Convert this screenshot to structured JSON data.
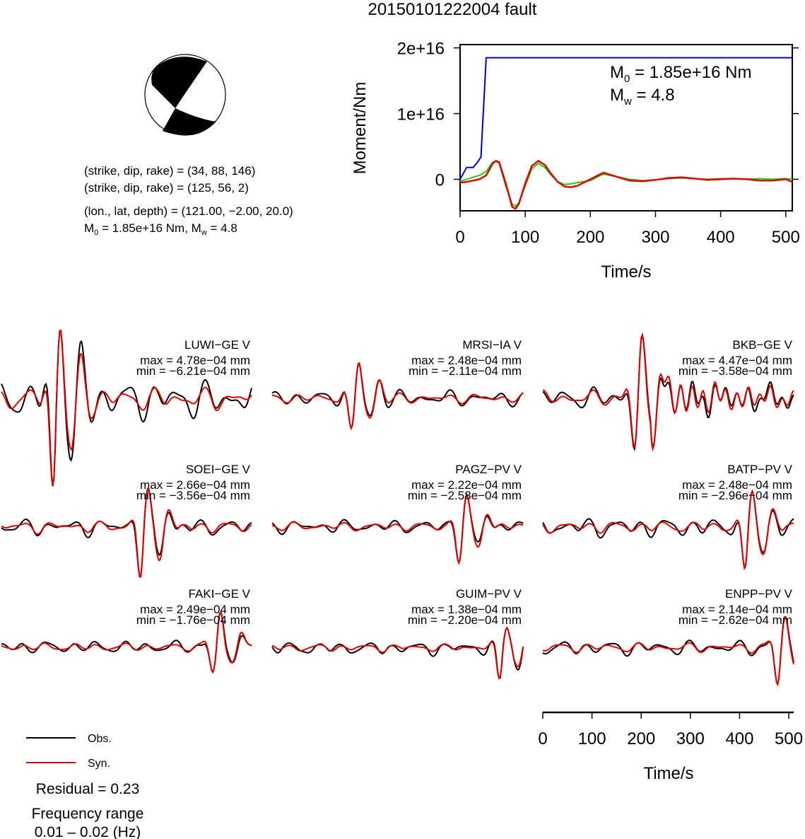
{
  "title": "20150101222004 fault",
  "mechanism": {
    "plane1": "(strike, dip, rake) = (34, 88, 146)",
    "plane2": "(strike, dip, rake) = (125, 56, 2)",
    "location": "(lon., lat, depth) = (121.00, −2.00, 20.0)",
    "moment_prefix": "M",
    "moment_sub": "0",
    "moment_rest": " = 1.85e+16 Nm, M",
    "mw_sub": "w",
    "mw_rest": " = 4.8"
  },
  "legend": {
    "obs": "Obs.",
    "syn": "Syn.",
    "residual": "Residual = 0.23",
    "freq_title": "Frequency range",
    "freq_range": "0.01 – 0.02 (Hz)"
  },
  "colors": {
    "observed": "#000000",
    "synthetic": "#dd0000",
    "cumulative_moment": "#0000cc",
    "moment_rate_green": "#22cc00",
    "moment_rate_red": "#dd0000"
  },
  "chart_data": [
    {
      "type": "line",
      "panel": "moment_function",
      "xlabel": "Time/s",
      "ylabel": "Moment/Nm",
      "xlim": [
        0,
        510
      ],
      "ylim": [
        -4800000000000000.0,
        2.05e+16
      ],
      "x_ticks": [
        "0",
        "100",
        "200",
        "300",
        "400",
        "500"
      ],
      "y_ticks": [
        "0",
        "1e+16",
        "2e+16"
      ],
      "annotation_m0": "M0 = 1.85e+16 Nm",
      "annotation_m0_prefix": "M",
      "annotation_m0_sub": "0",
      "annotation_m0_rest": " = 1.85e+16 Nm",
      "annotation_mw_prefix": "M",
      "annotation_mw_sub": "w",
      "annotation_mw_rest": " = 4.8",
      "series": [
        {
          "color": "blue",
          "x": [
            0,
            10,
            20,
            26,
            32,
            40,
            45,
            60,
            510
          ],
          "y": [
            0,
            1800000000000000.0,
            1800000000000000.0,
            2500000000000000.0,
            3400000000000000.0,
            1.85e+16,
            1.85e+16,
            1.85e+16,
            1.85e+16
          ]
        },
        {
          "color": "green",
          "x": [
            0,
            10,
            20,
            30,
            40,
            50,
            55,
            60,
            70,
            80,
            85,
            90,
            100,
            110,
            120,
            130,
            140,
            150,
            160,
            170,
            180,
            200,
            220,
            240,
            260,
            280,
            300,
            320,
            340,
            360,
            380,
            400,
            420,
            440,
            460,
            480,
            500,
            510
          ],
          "y": [
            -300000000000000.0,
            0,
            300000000000000.0,
            600000000000000.0,
            1200000000000000.0,
            2600000000000000.0,
            2700000000000000.0,
            2400000000000000.0,
            -1000000000000000.0,
            -3800000000000000.0,
            -4100000000000000.0,
            -3600000000000000.0,
            -1000000000000000.0,
            1600000000000000.0,
            2400000000000000.0,
            1800000000000000.0,
            600000000000000.0,
            -400000000000000.0,
            -800000000000000.0,
            -700000000000000.0,
            -500000000000000.0,
            -200000000000000.0,
            800000000000000.0,
            400000000000000.0,
            0,
            -200000000000000.0,
            -100000000000000.0,
            100000000000000.0,
            200000000000000.0,
            100000000000000.0,
            0,
            100000000000000.0,
            100000000000000.0,
            0,
            100000000000000.0,
            0,
            100000000000000.0,
            0
          ]
        },
        {
          "color": "red",
          "x": [
            0,
            10,
            20,
            30,
            40,
            50,
            55,
            60,
            70,
            80,
            85,
            90,
            100,
            110,
            120,
            130,
            140,
            150,
            160,
            170,
            180,
            200,
            220,
            240,
            260,
            280,
            300,
            320,
            340,
            360,
            380,
            400,
            420,
            440,
            460,
            480,
            500,
            510
          ],
          "y": [
            -500000000000000.0,
            -400000000000000.0,
            -200000000000000.0,
            0,
            600000000000000.0,
            2400000000000000.0,
            2800000000000000.0,
            2600000000000000.0,
            -600000000000000.0,
            -4200000000000000.0,
            -4500000000000000.0,
            -3800000000000000.0,
            -600000000000000.0,
            2000000000000000.0,
            2800000000000000.0,
            2200000000000000.0,
            800000000000000.0,
            -400000000000000.0,
            -1100000000000000.0,
            -1200000000000000.0,
            -1000000000000000.0,
            0,
            1000000000000000.0,
            400000000000000.0,
            -200000000000000.0,
            -300000000000000.0,
            -100000000000000.0,
            200000000000000.0,
            300000000000000.0,
            100000000000000.0,
            -100000000000000.0,
            0,
            100000000000000.0,
            0,
            -200000000000000.0,
            -200000000000000.0,
            0,
            -400000000000000.0
          ]
        }
      ]
    },
    {
      "type": "line",
      "panel": "waveforms",
      "xlabel": "Time/s",
      "xlim": [
        0,
        510
      ],
      "x_ticks": [
        "0",
        "100",
        "200",
        "300",
        "400",
        "500"
      ],
      "legend": [
        "Obs.",
        "Syn."
      ],
      "stations": [
        {
          "name": "LUWI−GE V",
          "max": "max = 4.78e−04 mm",
          "min": "min = −6.21e−04 mm",
          "amax": 0.000478,
          "amin": -0.000621
        },
        {
          "name": "MRSI−IA V",
          "max": "max = 2.48e−04 mm",
          "min": "min = −2.11e−04 mm",
          "amax": 0.000248,
          "amin": -0.000211
        },
        {
          "name": "BKB−GE V",
          "max": "max = 4.47e−04 mm",
          "min": "min = −3.58e−04 mm",
          "amax": 0.000447,
          "amin": -0.000358
        },
        {
          "name": "SOEI−GE V",
          "max": "max = 2.66e−04 mm",
          "min": "min = −3.56e−04 mm",
          "amax": 0.000266,
          "amin": -0.000356
        },
        {
          "name": "PAGZ−PV V",
          "max": "max = 2.22e−04 mm",
          "min": "min = −2.58e−04 mm",
          "amax": 0.000222,
          "amin": -0.000258
        },
        {
          "name": "BATP−PV V",
          "max": "max = 2.48e−04 mm",
          "min": "min = −2.96e−04 mm",
          "amax": 0.000248,
          "amin": -0.000296
        },
        {
          "name": "FAKI−GE V",
          "max": "max = 2.49e−04 mm",
          "min": "min = −1.76e−04 mm",
          "amax": 0.000249,
          "amin": -0.000176
        },
        {
          "name": "GUIM−PV V",
          "max": "max = 1.38e−04 mm",
          "min": "min = −2.20e−04 mm",
          "amax": 0.000138,
          "amin": -0.00022
        },
        {
          "name": "ENPP−PV V",
          "max": "max = 2.14e−04 mm",
          "min": "min = −2.62e−04 mm",
          "amax": 0.000214,
          "amin": -0.000262
        }
      ]
    }
  ]
}
